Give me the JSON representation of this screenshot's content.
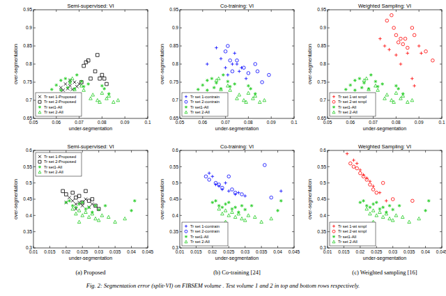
{
  "chart_data": [
    {
      "type": "scatter",
      "title": "Semi-supervised: VI",
      "x_label": "under-segmentation",
      "y_label": "over-segmentation",
      "legend": "lower left",
      "xlim": [
        0.05,
        0.1
      ],
      "xticks": [
        0.05,
        0.06,
        0.07,
        0.08,
        0.09,
        0.1
      ],
      "ylim": [
        0.65,
        0.95
      ],
      "yticks": [
        0.65,
        0.7,
        0.75,
        0.8,
        0.85,
        0.9,
        0.95
      ],
      "series": [
        {
          "name": "Tr set 1-Proposed",
          "color": "#000000",
          "marker": "x",
          "x": [
            0.062,
            0.063,
            0.064,
            0.065,
            0.066,
            0.067,
            0.068,
            0.069,
            0.07,
            0.066
          ],
          "values": [
            0.735,
            0.728,
            0.745,
            0.732,
            0.74,
            0.73,
            0.75,
            0.738,
            0.745,
            0.755
          ]
        },
        {
          "name": "Tr set 2-Proposed",
          "color": "#000000",
          "marker": "square",
          "x": [
            0.072,
            0.073,
            0.075,
            0.077,
            0.078,
            0.079,
            0.08,
            0.081,
            0.082,
            0.074,
            0.071
          ],
          "values": [
            0.795,
            0.805,
            0.76,
            0.78,
            0.825,
            0.76,
            0.77,
            0.76,
            0.745,
            0.81,
            0.75
          ]
        },
        {
          "name": "Tr set1-All",
          "color": "#22cc22",
          "marker": "star",
          "x": [
            0.062,
            0.064,
            0.066,
            0.069,
            0.071,
            0.065,
            0.072,
            0.068,
            0.06,
            0.058,
            0.074,
            0.08,
            0.081,
            0.083,
            0.062
          ],
          "values": [
            0.755,
            0.76,
            0.748,
            0.77,
            0.752,
            0.735,
            0.738,
            0.732,
            0.742,
            0.73,
            0.745,
            0.74,
            0.732,
            0.718,
            0.728
          ]
        },
        {
          "name": "Tr set 2-All",
          "color": "#22cc22",
          "marker": "triangle",
          "x": [
            0.066,
            0.067,
            0.071,
            0.075,
            0.076,
            0.078,
            0.08,
            0.082,
            0.083,
            0.085,
            0.087,
            0.079,
            0.072,
            0.068
          ],
          "values": [
            0.755,
            0.76,
            0.74,
            0.705,
            0.715,
            0.7,
            0.72,
            0.705,
            0.712,
            0.695,
            0.7,
            0.695,
            0.728,
            0.73
          ]
        }
      ]
    },
    {
      "type": "scatter",
      "title": "Co-training: VI",
      "x_label": "under-segmentation",
      "y_label": "over-segmentation",
      "legend": "lower left",
      "xlim": [
        0.05,
        0.1
      ],
      "xticks": [
        0.05,
        0.06,
        0.07,
        0.08,
        0.09,
        0.1
      ],
      "ylim": [
        0.65,
        0.95
      ],
      "yticks": [
        0.65,
        0.7,
        0.75,
        0.8,
        0.85,
        0.9,
        0.95
      ],
      "series": [
        {
          "name": "Tr set 1-contrain",
          "color": "#0000ff",
          "marker": "plus",
          "x": [
            0.062,
            0.066,
            0.068,
            0.07,
            0.073,
            0.074,
            0.075,
            0.076,
            0.077,
            0.079,
            0.071
          ],
          "values": [
            0.8,
            0.845,
            0.815,
            0.79,
            0.8,
            0.83,
            0.8,
            0.78,
            0.79,
            0.76,
            0.77
          ]
        },
        {
          "name": "Tr set 2-contrain",
          "color": "#0000ff",
          "marker": "circle",
          "x": [
            0.07,
            0.071,
            0.072,
            0.075,
            0.078,
            0.08,
            0.083,
            0.084,
            0.086,
            0.089,
            0.073
          ],
          "values": [
            0.835,
            0.85,
            0.81,
            0.81,
            0.79,
            0.775,
            0.8,
            0.78,
            0.75,
            0.77,
            0.78
          ]
        },
        {
          "name": "Tr set1-All",
          "color": "#22cc22",
          "marker": "star",
          "x": [
            0.062,
            0.064,
            0.066,
            0.069,
            0.071,
            0.065,
            0.072,
            0.068,
            0.06,
            0.058,
            0.074,
            0.08,
            0.081,
            0.083,
            0.062
          ],
          "values": [
            0.755,
            0.76,
            0.748,
            0.77,
            0.752,
            0.735,
            0.738,
            0.732,
            0.742,
            0.73,
            0.745,
            0.74,
            0.732,
            0.718,
            0.728
          ]
        },
        {
          "name": "Tr set 2-All",
          "color": "#22cc22",
          "marker": "triangle",
          "x": [
            0.066,
            0.067,
            0.071,
            0.075,
            0.076,
            0.078,
            0.08,
            0.082,
            0.083,
            0.085,
            0.087,
            0.079,
            0.072,
            0.068
          ],
          "values": [
            0.755,
            0.76,
            0.74,
            0.705,
            0.715,
            0.7,
            0.72,
            0.705,
            0.712,
            0.695,
            0.7,
            0.695,
            0.728,
            0.73
          ]
        }
      ]
    },
    {
      "type": "scatter",
      "title": "Weighted Sampling: VI",
      "x_label": "under-segmentation",
      "y_label": "over-segmentation",
      "legend": "lower left",
      "xlim": [
        0.05,
        0.1
      ],
      "xticks": [
        0.05,
        0.06,
        0.07,
        0.08,
        0.09,
        0.1
      ],
      "ylim": [
        0.65,
        0.95
      ],
      "yticks": [
        0.65,
        0.7,
        0.75,
        0.8,
        0.85,
        0.9,
        0.95
      ],
      "series": [
        {
          "name": "Tr set 1-wt smpl",
          "color": "#ff0000",
          "marker": "plus",
          "x": [
            0.073,
            0.075,
            0.077,
            0.08,
            0.082,
            0.085,
            0.087,
            0.088,
            0.09,
            0.091
          ],
          "values": [
            0.87,
            0.85,
            0.84,
            0.825,
            0.8,
            0.83,
            0.76,
            0.74,
            0.85,
            0.83
          ]
        },
        {
          "name": "Tr set 2-wt smpl",
          "color": "#ff0000",
          "marker": "circle",
          "x": [
            0.076,
            0.078,
            0.079,
            0.08,
            0.081,
            0.082,
            0.083,
            0.084,
            0.085,
            0.087,
            0.088,
            0.096,
            0.093
          ],
          "values": [
            0.92,
            0.935,
            0.9,
            0.88,
            0.86,
            0.87,
            0.855,
            0.87,
            0.845,
            0.9,
            0.88,
            0.81,
            0.835
          ]
        },
        {
          "name": "Tr set1-All",
          "color": "#22cc22",
          "marker": "star",
          "x": [
            0.062,
            0.064,
            0.066,
            0.069,
            0.071,
            0.065,
            0.072,
            0.068,
            0.06,
            0.058,
            0.074,
            0.08,
            0.081,
            0.083,
            0.062
          ],
          "values": [
            0.755,
            0.76,
            0.748,
            0.77,
            0.752,
            0.735,
            0.738,
            0.732,
            0.742,
            0.73,
            0.745,
            0.74,
            0.732,
            0.718,
            0.728
          ]
        },
        {
          "name": "Tr set 2-All",
          "color": "#22cc22",
          "marker": "triangle",
          "x": [
            0.066,
            0.067,
            0.071,
            0.075,
            0.076,
            0.078,
            0.08,
            0.082,
            0.083,
            0.085,
            0.087,
            0.079,
            0.072,
            0.068
          ],
          "values": [
            0.755,
            0.76,
            0.74,
            0.705,
            0.715,
            0.7,
            0.72,
            0.705,
            0.712,
            0.695,
            0.7,
            0.695,
            0.728,
            0.73
          ]
        }
      ]
    },
    {
      "type": "scatter",
      "title": "Semi-supervised: VI",
      "x_label": "under-segmentation",
      "y_label": "over-segmentation",
      "legend": "upper left",
      "xlim": [
        0.01,
        0.045
      ],
      "xticks": [
        0.01,
        0.015,
        0.02,
        0.025,
        0.03,
        0.035,
        0.04,
        0.045
      ],
      "ylim": [
        0.3,
        0.6
      ],
      "yticks": [
        0.3,
        0.35,
        0.4,
        0.45,
        0.5,
        0.55,
        0.6
      ],
      "series": [
        {
          "name": "Tr set 1-Proposed",
          "color": "#000000",
          "marker": "x",
          "x": [
            0.02,
            0.022,
            0.023,
            0.024,
            0.025,
            0.026,
            0.027,
            0.028,
            0.023,
            0.021
          ],
          "values": [
            0.44,
            0.445,
            0.435,
            0.44,
            0.43,
            0.45,
            0.425,
            0.435,
            0.42,
            0.455
          ]
        },
        {
          "name": "Tr set 2-Proposed",
          "color": "#000000",
          "marker": "square",
          "x": [
            0.019,
            0.02,
            0.022,
            0.023,
            0.024,
            0.025,
            0.026,
            0.027,
            0.029,
            0.03,
            0.028
          ],
          "values": [
            0.475,
            0.465,
            0.47,
            0.455,
            0.46,
            0.44,
            0.475,
            0.445,
            0.43,
            0.42,
            0.45
          ]
        },
        {
          "name": "Tr set1-All",
          "color": "#22cc22",
          "marker": "star",
          "x": [
            0.02,
            0.021,
            0.022,
            0.023,
            0.024,
            0.025,
            0.026,
            0.027,
            0.028,
            0.029,
            0.03,
            0.041,
            0.04,
            0.032
          ],
          "values": [
            0.44,
            0.445,
            0.43,
            0.425,
            0.435,
            0.44,
            0.42,
            0.425,
            0.41,
            0.43,
            0.418,
            0.445,
            0.415,
            0.43
          ]
        },
        {
          "name": "Tr set 2-All",
          "color": "#22cc22",
          "marker": "triangle",
          "x": [
            0.022,
            0.023,
            0.024,
            0.025,
            0.026,
            0.027,
            0.028,
            0.029,
            0.03,
            0.031,
            0.033,
            0.035,
            0.038,
            0.024
          ],
          "values": [
            0.42,
            0.405,
            0.415,
            0.4,
            0.41,
            0.395,
            0.405,
            0.39,
            0.385,
            0.4,
            0.395,
            0.38,
            0.39,
            0.38
          ]
        }
      ]
    },
    {
      "type": "scatter",
      "title": "Co-training: VI",
      "x_label": "under-segmentation",
      "y_label": "over-segmentation",
      "legend": "lower left",
      "xlim": [
        0.01,
        0.045
      ],
      "xticks": [
        0.01,
        0.015,
        0.02,
        0.025,
        0.03,
        0.035,
        0.04,
        0.045
      ],
      "ylim": [
        0.3,
        0.6
      ],
      "yticks": [
        0.3,
        0.35,
        0.4,
        0.45,
        0.5,
        0.55,
        0.6
      ],
      "series": [
        {
          "name": "Tr set 1-contrain",
          "color": "#0000ff",
          "marker": "plus",
          "x": [
            0.019,
            0.02,
            0.021,
            0.022,
            0.023,
            0.025,
            0.027,
            0.028,
            0.03,
            0.041,
            0.024
          ],
          "values": [
            0.53,
            0.52,
            0.495,
            0.49,
            0.48,
            0.475,
            0.465,
            0.47,
            0.46,
            0.475,
            0.5
          ]
        },
        {
          "name": "Tr set 2-contrain",
          "color": "#0000ff",
          "marker": "circle",
          "x": [
            0.018,
            0.019,
            0.021,
            0.022,
            0.023,
            0.026,
            0.027,
            0.029,
            0.036,
            0.038,
            0.025
          ],
          "values": [
            0.52,
            0.51,
            0.5,
            0.495,
            0.485,
            0.48,
            0.47,
            0.465,
            0.555,
            0.455,
            0.52
          ]
        },
        {
          "name": "Tr set1-All",
          "color": "#22cc22",
          "marker": "star",
          "x": [
            0.02,
            0.021,
            0.022,
            0.023,
            0.024,
            0.025,
            0.026,
            0.027,
            0.028,
            0.029,
            0.03,
            0.041,
            0.04,
            0.032
          ],
          "values": [
            0.44,
            0.445,
            0.43,
            0.425,
            0.435,
            0.44,
            0.42,
            0.425,
            0.41,
            0.43,
            0.418,
            0.445,
            0.415,
            0.43
          ]
        },
        {
          "name": "Tr set 2-All",
          "color": "#22cc22",
          "marker": "triangle",
          "x": [
            0.022,
            0.023,
            0.024,
            0.025,
            0.026,
            0.027,
            0.028,
            0.029,
            0.03,
            0.031,
            0.033,
            0.035,
            0.038,
            0.024
          ],
          "values": [
            0.42,
            0.405,
            0.415,
            0.4,
            0.41,
            0.395,
            0.405,
            0.39,
            0.385,
            0.4,
            0.395,
            0.38,
            0.39,
            0.38
          ]
        }
      ]
    },
    {
      "type": "scatter",
      "title": "Weighted Sampling: VI",
      "x_label": "under-segmentation",
      "y_label": "over-segmentation",
      "legend": "lower left",
      "xlim": [
        0.01,
        0.045
      ],
      "xticks": [
        0.01,
        0.015,
        0.02,
        0.025,
        0.03,
        0.035,
        0.04,
        0.045
      ],
      "ylim": [
        0.3,
        0.6
      ],
      "yticks": [
        0.3,
        0.35,
        0.4,
        0.45,
        0.5,
        0.55,
        0.6
      ],
      "series": [
        {
          "name": "Tr set 1-wt smpl",
          "color": "#ff0000",
          "marker": "plus",
          "x": [
            0.016,
            0.018,
            0.019,
            0.02,
            0.021,
            0.022,
            0.024,
            0.026,
            0.028,
            0.023
          ],
          "values": [
            0.59,
            0.57,
            0.56,
            0.54,
            0.525,
            0.515,
            0.49,
            0.47,
            0.445,
            0.505
          ]
        },
        {
          "name": "Tr set 2-wt smpl",
          "color": "#ff0000",
          "marker": "circle",
          "x": [
            0.017,
            0.018,
            0.019,
            0.02,
            0.021,
            0.022,
            0.023,
            0.024,
            0.025,
            0.027,
            0.03,
            0.036
          ],
          "values": [
            0.56,
            0.55,
            0.545,
            0.53,
            0.52,
            0.51,
            0.495,
            0.48,
            0.47,
            0.5,
            0.45,
            0.445
          ]
        },
        {
          "name": "Tr set1-All",
          "color": "#22cc22",
          "marker": "star",
          "x": [
            0.02,
            0.021,
            0.022,
            0.023,
            0.024,
            0.025,
            0.026,
            0.027,
            0.028,
            0.029,
            0.03,
            0.041,
            0.04,
            0.032
          ],
          "values": [
            0.44,
            0.445,
            0.43,
            0.425,
            0.435,
            0.44,
            0.42,
            0.425,
            0.41,
            0.43,
            0.418,
            0.445,
            0.415,
            0.43
          ]
        },
        {
          "name": "Tr set 2-All",
          "color": "#22cc22",
          "marker": "triangle",
          "x": [
            0.022,
            0.023,
            0.024,
            0.025,
            0.026,
            0.027,
            0.028,
            0.029,
            0.03,
            0.031,
            0.033,
            0.035,
            0.038,
            0.024
          ],
          "values": [
            0.42,
            0.405,
            0.415,
            0.4,
            0.41,
            0.395,
            0.405,
            0.39,
            0.385,
            0.4,
            0.395,
            0.38,
            0.39,
            0.38
          ]
        }
      ]
    }
  ],
  "subcaptions": [
    "(a) Proposed",
    "(b) Co-training [24]",
    "(c) Weighted sampling [16]"
  ],
  "figure_caption": "Fig. 2: Segmentation error (split-VI) on FIBSEM volume . Test volume 1 and 2 in top and bottom rows respectively."
}
